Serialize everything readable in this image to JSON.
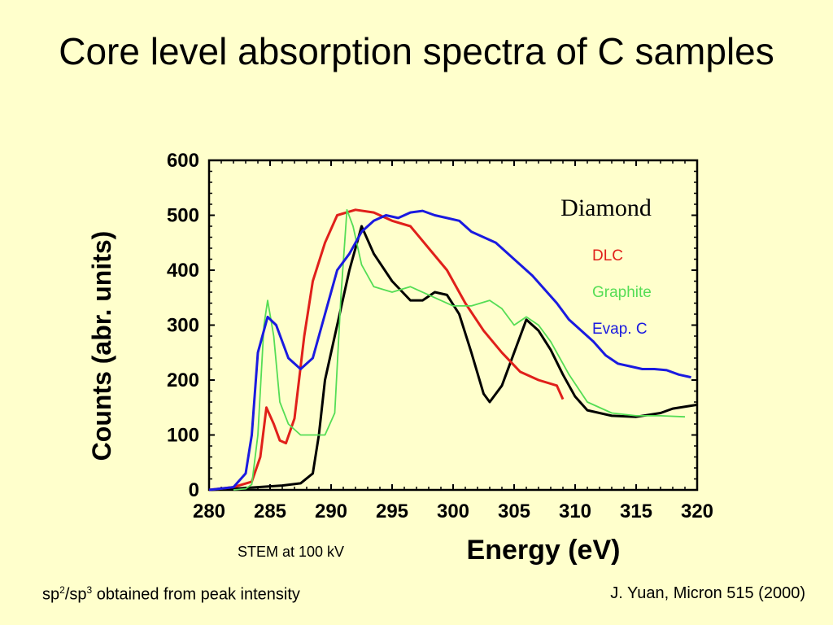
{
  "slide": {
    "title": "Core level absorption spectra of C samples",
    "stem_note": "STEM at 100 kV",
    "footer_left": {
      "a": "sp",
      "sup_a": "2",
      "slash": "/sp",
      "sup_b": "3",
      "rest": " obtained from peak intensity"
    },
    "footer_right": "J. Yuan, Micron 515 (2000)"
  },
  "chart_data": {
    "type": "line",
    "annotation": "Diamond",
    "xlabel": "Energy (eV)",
    "ylabel": "Counts (abr. units)",
    "xlim": [
      280,
      320
    ],
    "ylim": [
      0,
      600
    ],
    "x_ticks": [
      280,
      285,
      290,
      295,
      300,
      305,
      310,
      315,
      320
    ],
    "y_ticks": [
      0,
      100,
      200,
      300,
      400,
      500,
      600
    ],
    "legend": [
      {
        "name": "DLC",
        "color": "#E0201A"
      },
      {
        "name": "Graphite",
        "color": "#55DD55"
      },
      {
        "name": "Evap. C",
        "color": "#1A1AE0"
      }
    ],
    "series": [
      {
        "name": "Diamond",
        "color": "#000000",
        "points": [
          [
            280,
            0
          ],
          [
            282,
            2
          ],
          [
            284,
            5
          ],
          [
            286,
            8
          ],
          [
            287.5,
            12
          ],
          [
            288.5,
            30
          ],
          [
            289,
            100
          ],
          [
            289.5,
            200
          ],
          [
            290.5,
            300
          ],
          [
            291.5,
            400
          ],
          [
            292.5,
            480
          ],
          [
            293.5,
            430
          ],
          [
            295,
            380
          ],
          [
            296.5,
            345
          ],
          [
            297.5,
            345
          ],
          [
            298.5,
            360
          ],
          [
            299.5,
            355
          ],
          [
            300.5,
            320
          ],
          [
            301.5,
            250
          ],
          [
            302.5,
            175
          ],
          [
            303,
            160
          ],
          [
            304,
            190
          ],
          [
            305,
            250
          ],
          [
            306,
            310
          ],
          [
            307,
            290
          ],
          [
            308,
            255
          ],
          [
            309,
            210
          ],
          [
            310,
            170
          ],
          [
            311,
            145
          ],
          [
            313,
            135
          ],
          [
            315,
            133
          ],
          [
            317,
            140
          ],
          [
            318,
            148
          ],
          [
            320,
            155
          ]
        ]
      },
      {
        "name": "DLC",
        "color": "#E0201A",
        "points": [
          [
            280,
            0
          ],
          [
            282,
            5
          ],
          [
            283.5,
            15
          ],
          [
            284.2,
            60
          ],
          [
            284.7,
            150
          ],
          [
            285.3,
            120
          ],
          [
            285.8,
            90
          ],
          [
            286.3,
            85
          ],
          [
            287,
            130
          ],
          [
            287.8,
            280
          ],
          [
            288.5,
            380
          ],
          [
            289.5,
            450
          ],
          [
            290.5,
            500
          ],
          [
            292,
            510
          ],
          [
            293.5,
            505
          ],
          [
            295,
            490
          ],
          [
            296.5,
            480
          ],
          [
            298,
            440
          ],
          [
            299.5,
            400
          ],
          [
            301,
            340
          ],
          [
            302.5,
            290
          ],
          [
            304,
            250
          ],
          [
            305.5,
            215
          ],
          [
            307,
            200
          ],
          [
            308.5,
            190
          ],
          [
            309,
            165
          ]
        ]
      },
      {
        "name": "Graphite",
        "color": "#55DD55",
        "points": [
          [
            282,
            0
          ],
          [
            283,
            2
          ],
          [
            283.5,
            10
          ],
          [
            284,
            100
          ],
          [
            284.5,
            300
          ],
          [
            284.8,
            345
          ],
          [
            285.3,
            280
          ],
          [
            285.8,
            160
          ],
          [
            286.5,
            120
          ],
          [
            287.5,
            100
          ],
          [
            288.5,
            100
          ],
          [
            289.5,
            100
          ],
          [
            290.3,
            140
          ],
          [
            290.8,
            350
          ],
          [
            291.3,
            510
          ],
          [
            291.8,
            480
          ],
          [
            292.5,
            410
          ],
          [
            293.5,
            370
          ],
          [
            295,
            360
          ],
          [
            296.5,
            370
          ],
          [
            298,
            355
          ],
          [
            300,
            335
          ],
          [
            301.5,
            335
          ],
          [
            303,
            345
          ],
          [
            304,
            330
          ],
          [
            305,
            300
          ],
          [
            306,
            315
          ],
          [
            307,
            300
          ],
          [
            308,
            270
          ],
          [
            309.5,
            210
          ],
          [
            311,
            160
          ],
          [
            313,
            140
          ],
          [
            315,
            135
          ],
          [
            317,
            135
          ],
          [
            319,
            133
          ]
        ]
      },
      {
        "name": "Evap. C",
        "color": "#1A1AE0",
        "points": [
          [
            280,
            0
          ],
          [
            282,
            5
          ],
          [
            283,
            30
          ],
          [
            283.5,
            100
          ],
          [
            284,
            250
          ],
          [
            284.8,
            315
          ],
          [
            285.5,
            300
          ],
          [
            286.5,
            240
          ],
          [
            287.5,
            220
          ],
          [
            288.5,
            240
          ],
          [
            289.5,
            320
          ],
          [
            290.5,
            400
          ],
          [
            291.5,
            430
          ],
          [
            292.5,
            470
          ],
          [
            293.5,
            490
          ],
          [
            294.5,
            500
          ],
          [
            295.5,
            495
          ],
          [
            296.5,
            505
          ],
          [
            297.5,
            508
          ],
          [
            298.5,
            500
          ],
          [
            299.5,
            495
          ],
          [
            300.5,
            490
          ],
          [
            301.5,
            470
          ],
          [
            302.5,
            460
          ],
          [
            303.5,
            450
          ],
          [
            304.5,
            430
          ],
          [
            305.5,
            410
          ],
          [
            306.5,
            390
          ],
          [
            307.5,
            365
          ],
          [
            308.5,
            340
          ],
          [
            309.5,
            310
          ],
          [
            310.5,
            290
          ],
          [
            311.5,
            270
          ],
          [
            312.5,
            245
          ],
          [
            313.5,
            230
          ],
          [
            314.5,
            225
          ],
          [
            315.5,
            220
          ],
          [
            316.5,
            220
          ],
          [
            317.5,
            218
          ],
          [
            318.5,
            210
          ],
          [
            319.5,
            205
          ]
        ]
      }
    ]
  }
}
